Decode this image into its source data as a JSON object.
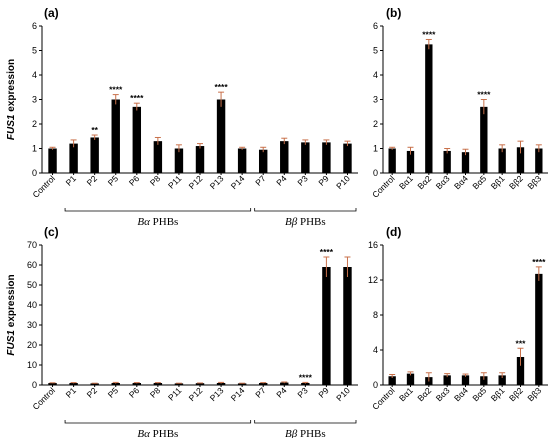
{
  "chart_data": [
    {
      "id": "a",
      "type": "bar",
      "panel_label": "(a)",
      "ylabel_italic": "FUS1",
      "ylabel_rest": " expression",
      "ylim": [
        0,
        6
      ],
      "yticks": [
        0,
        1,
        2,
        3,
        4,
        5,
        6
      ],
      "bar_color": "#000000",
      "error_color": "#c8704a",
      "categories": [
        "Control",
        "P1",
        "P2",
        "P5",
        "P6",
        "P8",
        "P11",
        "P12",
        "P13",
        "P14",
        "P7",
        "P4",
        "P3",
        "P9",
        "P10"
      ],
      "values": [
        1.0,
        1.2,
        1.45,
        3.0,
        2.7,
        1.3,
        1.0,
        1.1,
        3.0,
        1.0,
        0.95,
        1.3,
        1.25,
        1.25,
        1.2
      ],
      "errors": [
        0.05,
        0.15,
        0.1,
        0.2,
        0.15,
        0.15,
        0.15,
        0.1,
        0.3,
        0.05,
        0.1,
        0.12,
        0.1,
        0.1,
        0.1
      ],
      "significance": [
        "",
        "",
        "**",
        "****",
        "****",
        "",
        "",
        "",
        "****",
        "",
        "",
        "",
        "",
        "",
        ""
      ],
      "groups": [
        {
          "label_prefix": "Bα",
          "label_suffix": " PHBs",
          "start": 1,
          "end": 9
        },
        {
          "label_prefix": "Bβ",
          "label_suffix": " PHBs",
          "start": 10,
          "end": 14
        }
      ]
    },
    {
      "id": "b",
      "type": "bar",
      "panel_label": "(b)",
      "ylim": [
        0,
        6
      ],
      "yticks": [
        0,
        1,
        2,
        3,
        4,
        5,
        6
      ],
      "bar_color": "#000000",
      "error_color": "#c8704a",
      "categories": [
        "Control",
        "Bα1",
        "Bα2",
        "Bα3",
        "Bα4",
        "Bα5",
        "Bβ1",
        "Bβ2",
        "Bβ3"
      ],
      "values": [
        1.0,
        0.9,
        5.25,
        0.9,
        0.85,
        2.7,
        1.0,
        1.05,
        1.0
      ],
      "errors": [
        0.05,
        0.15,
        0.2,
        0.1,
        0.12,
        0.3,
        0.15,
        0.25,
        0.15
      ],
      "significance": [
        "",
        "",
        "****",
        "",
        "",
        "****",
        "",
        "",
        ""
      ]
    },
    {
      "id": "c",
      "type": "bar",
      "panel_label": "(c)",
      "ylabel_italic": "FUS1",
      "ylabel_rest": " expression",
      "ylim": [
        0,
        70
      ],
      "yticks": [
        0,
        10,
        20,
        30,
        40,
        50,
        60,
        70
      ],
      "bar_color": "#000000",
      "error_color": "#c8704a",
      "categories": [
        "Control",
        "P1",
        "P2",
        "P5",
        "P6",
        "P8",
        "P11",
        "P12",
        "P13",
        "P14",
        "P7",
        "P4",
        "P3",
        "P9",
        "P10"
      ],
      "values": [
        1.0,
        1.0,
        0.8,
        1.0,
        1.0,
        1.0,
        0.8,
        0.9,
        1.0,
        0.8,
        1.0,
        1.2,
        1.0,
        59,
        59
      ],
      "errors": [
        0.1,
        0.2,
        0.1,
        0.3,
        0.2,
        0.2,
        0.1,
        0.1,
        0.3,
        0.1,
        0.2,
        0.3,
        0.3,
        5,
        5
      ],
      "significance": [
        "",
        "",
        "",
        "",
        "",
        "",
        "",
        "",
        "",
        "",
        "",
        "",
        "****",
        "****",
        ""
      ],
      "groups": [
        {
          "label_prefix": "Bα",
          "label_suffix": " PHBs",
          "start": 1,
          "end": 9
        },
        {
          "label_prefix": "Bβ",
          "label_suffix": " PHBs",
          "start": 10,
          "end": 14
        }
      ]
    },
    {
      "id": "d",
      "type": "bar",
      "panel_label": "(d)",
      "ylim": [
        0,
        16
      ],
      "yticks": [
        0,
        4,
        8,
        12,
        16
      ],
      "bar_color": "#000000",
      "error_color": "#c8704a",
      "categories": [
        "Control",
        "Bα1",
        "Bα2",
        "Bα3",
        "Bα4",
        "Bα5",
        "Bβ1",
        "Bβ2",
        "Bβ3"
      ],
      "values": [
        1.0,
        1.3,
        0.9,
        1.1,
        1.1,
        1.0,
        1.1,
        3.2,
        12.7
      ],
      "errors": [
        0.2,
        0.2,
        0.5,
        0.2,
        0.15,
        0.4,
        0.3,
        1.0,
        0.8
      ],
      "significance": [
        "",
        "",
        "",
        "",
        "",
        "",
        "",
        "***",
        "****"
      ]
    }
  ]
}
